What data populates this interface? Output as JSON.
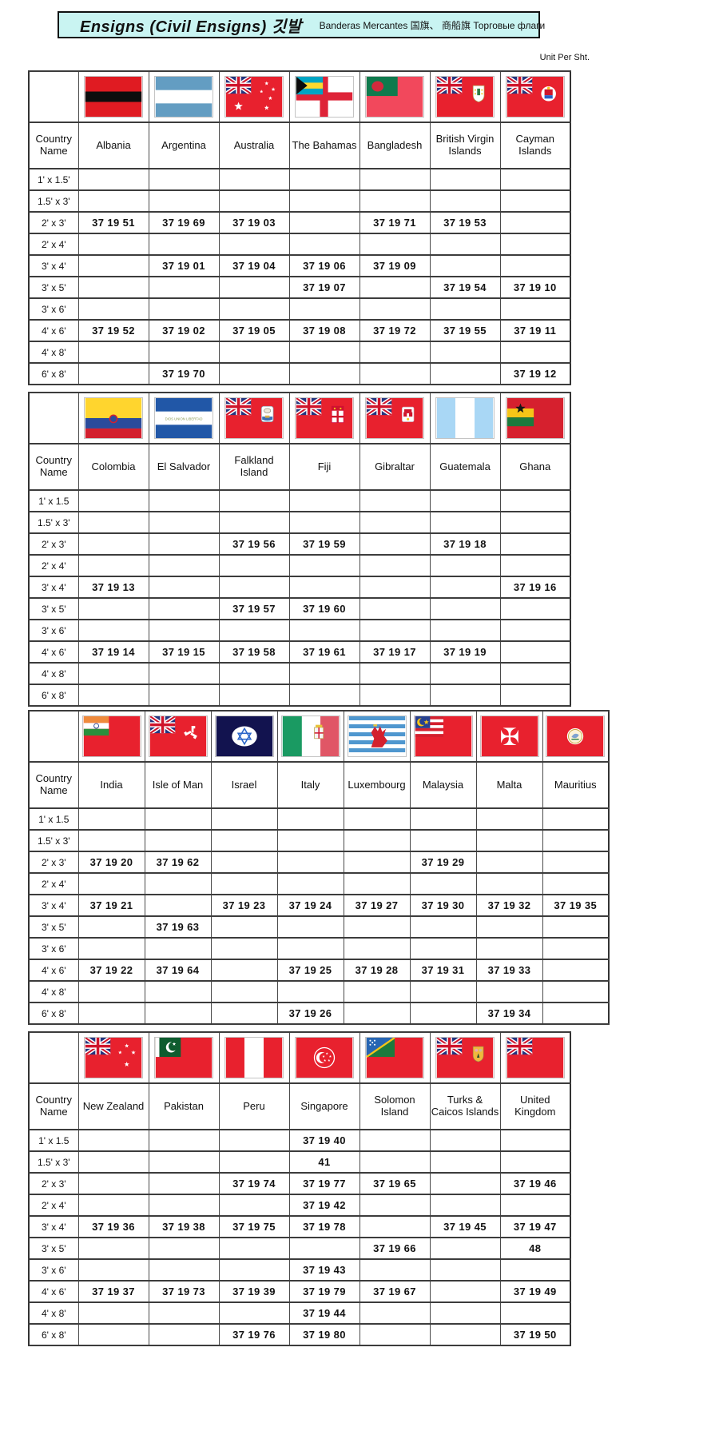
{
  "header": {
    "title": "Ensigns (Civil Ensigns) 깃발",
    "subtitle": "Banderas Mercantes  国旗、 商船旗  Торговые флаги",
    "unit_note": "Unit Per Sht.",
    "title_bg": "#c9f4f2"
  },
  "labels": {
    "country_name": "Country Name"
  },
  "tables": [
    {
      "columns": [
        {
          "country": "Albania",
          "flag": "albania"
        },
        {
          "country": "Argentina",
          "flag": "argentina"
        },
        {
          "country": "Australia",
          "flag": "australia"
        },
        {
          "country": "The Bahamas",
          "flag": "bahamas"
        },
        {
          "country": "Bangladesh",
          "flag": "bangladesh"
        },
        {
          "country": "British Virgin Islands",
          "flag": "british-virgin-islands"
        },
        {
          "country": "Cayman Islands",
          "flag": "cayman-islands"
        }
      ],
      "sizes": [
        "1' x 1.5'",
        "1.5' x 3'",
        "2' x 3'",
        "2' x 4'",
        "3' x 4'",
        "3' x 5'",
        "3' x 6'",
        "4' x 6'",
        "4' x 8'",
        "6' x 8'"
      ],
      "rows": [
        [
          "",
          "",
          "",
          "",
          "",
          "",
          ""
        ],
        [
          "",
          "",
          "",
          "",
          "",
          "",
          ""
        ],
        [
          "37 19 51",
          "37 19 69",
          "37 19 03",
          "",
          "37 19 71",
          "37 19 53",
          ""
        ],
        [
          "",
          "",
          "",
          "",
          "",
          "",
          ""
        ],
        [
          "",
          "37 19 01",
          "37 19 04",
          "37 19 06",
          "37 19 09",
          "",
          ""
        ],
        [
          "",
          "",
          "",
          "37 19 07",
          "",
          "37 19 54",
          "37 19 10"
        ],
        [
          "",
          "",
          "",
          "",
          "",
          "",
          ""
        ],
        [
          "37 19 52",
          "37 19 02",
          "37 19 05",
          "37 19 08",
          "37 19 72",
          "37 19 55",
          "37 19 11"
        ],
        [
          "",
          "",
          "",
          "",
          "",
          "",
          ""
        ],
        [
          "",
          "37 19 70",
          "",
          "",
          "",
          "",
          "37 19 12"
        ]
      ]
    },
    {
      "columns": [
        {
          "country": "Colombia",
          "flag": "colombia"
        },
        {
          "country": "El Salvador",
          "flag": "el-salvador"
        },
        {
          "country": "Falkland Island",
          "flag": "falkland-island"
        },
        {
          "country": "Fiji",
          "flag": "fiji"
        },
        {
          "country": "Gibraltar",
          "flag": "gibraltar"
        },
        {
          "country": "Guatemala",
          "flag": "guatemala"
        },
        {
          "country": "Ghana",
          "flag": "ghana"
        }
      ],
      "sizes": [
        "1' x 1.5",
        "1.5' x 3'",
        "2' x 3'",
        "2' x 4'",
        "3' x 4'",
        "3' x 5'",
        "3' x 6'",
        "4' x 6'",
        "4' x 8'",
        "6' x 8'"
      ],
      "rows": [
        [
          "",
          "",
          "",
          "",
          "",
          "",
          ""
        ],
        [
          "",
          "",
          "",
          "",
          "",
          "",
          ""
        ],
        [
          "",
          "",
          "37 19 56",
          "37 19 59",
          "",
          "37 19 18",
          ""
        ],
        [
          "",
          "",
          "",
          "",
          "",
          "",
          ""
        ],
        [
          "37 19 13",
          "",
          "",
          "",
          "",
          "",
          "37 19 16"
        ],
        [
          "",
          "",
          "37 19 57",
          "37 19 60",
          "",
          "",
          ""
        ],
        [
          "",
          "",
          "",
          "",
          "",
          "",
          ""
        ],
        [
          "37 19 14",
          "37 19 15",
          "37 19 58",
          "37 19 61",
          "37 19 17",
          "37 19 19",
          ""
        ],
        [
          "",
          "",
          "",
          "",
          "",
          "",
          ""
        ],
        [
          "",
          "",
          "",
          "",
          "",
          "",
          ""
        ]
      ]
    },
    {
      "columns": [
        {
          "country": "India",
          "flag": "india"
        },
        {
          "country": "Isle of Man",
          "flag": "isle-of-man"
        },
        {
          "country": "Israel",
          "flag": "israel"
        },
        {
          "country": "Italy",
          "flag": "italy"
        },
        {
          "country": "Luxembourg",
          "flag": "luxembourg"
        },
        {
          "country": "Malaysia",
          "flag": "malaysia"
        },
        {
          "country": "Malta",
          "flag": "malta"
        },
        {
          "country": "Mauritius",
          "flag": "mauritius"
        }
      ],
      "sizes": [
        "1' x 1.5",
        "1.5' x 3'",
        "2' x 3'",
        "2' x 4'",
        "3' x 4'",
        "3' x 5'",
        "3' x 6'",
        "4' x 6'",
        "4' x 8'",
        "6' x 8'"
      ],
      "rows": [
        [
          "",
          "",
          "",
          "",
          "",
          "",
          "",
          ""
        ],
        [
          "",
          "",
          "",
          "",
          "",
          "",
          "",
          ""
        ],
        [
          "37 19 20",
          "37 19 62",
          "",
          "",
          "",
          "37 19 29",
          "",
          ""
        ],
        [
          "",
          "",
          "",
          "",
          "",
          "",
          "",
          ""
        ],
        [
          "37 19 21",
          "",
          "37 19 23",
          "37 19 24",
          "37 19 27",
          "37 19 30",
          "37 19 32",
          "37 19 35"
        ],
        [
          "",
          "37 19 63",
          "",
          "",
          "",
          "",
          "",
          ""
        ],
        [
          "",
          "",
          "",
          "",
          "",
          "",
          "",
          ""
        ],
        [
          "37 19 22",
          "37 19 64",
          "",
          "37 19 25",
          "37 19 28",
          "37 19 31",
          "37 19 33",
          ""
        ],
        [
          "",
          "",
          "",
          "",
          "",
          "",
          "",
          ""
        ],
        [
          "",
          "",
          "",
          "37 19 26",
          "",
          "",
          "37 19 34",
          ""
        ]
      ]
    },
    {
      "columns": [
        {
          "country": "New Zealand",
          "flag": "new-zealand"
        },
        {
          "country": "Pakistan",
          "flag": "pakistan"
        },
        {
          "country": "Peru",
          "flag": "peru"
        },
        {
          "country": "Singapore",
          "flag": "singapore"
        },
        {
          "country": "Solomon Island",
          "flag": "solomon-island"
        },
        {
          "country": "Turks & Caicos Islands",
          "flag": "turks-caicos"
        },
        {
          "country": "United Kingdom",
          "flag": "united-kingdom"
        }
      ],
      "sizes": [
        "1' x 1.5",
        "1.5' x 3'",
        "2' x 3'",
        "2' x 4'",
        "3' x 4'",
        "3' x 5'",
        "3' x 6'",
        "4' x 6'",
        "4' x 8'",
        "6' x 8'"
      ],
      "rows": [
        [
          "",
          "",
          "",
          "37 19 40",
          "",
          "",
          ""
        ],
        [
          "",
          "",
          "",
          "41",
          "",
          "",
          ""
        ],
        [
          "",
          "",
          "37 19 74",
          "37 19 77",
          "37 19 65",
          "",
          "37 19 46"
        ],
        [
          "",
          "",
          "",
          "37 19 42",
          "",
          "",
          ""
        ],
        [
          "37 19 36",
          "37 19 38",
          "37 19 75",
          "37 19 78",
          "",
          "37 19 45",
          "37 19 47"
        ],
        [
          "",
          "",
          "",
          "",
          "37 19 66",
          "",
          "48"
        ],
        [
          "",
          "",
          "",
          "37 19 43",
          "",
          "",
          ""
        ],
        [
          "37 19 37",
          "37 19 73",
          "37 19 39",
          "37 19 79",
          "37 19 67",
          "",
          "37 19 49"
        ],
        [
          "",
          "",
          "",
          "37 19 44",
          "",
          "",
          ""
        ],
        [
          "",
          "",
          "37 19 76",
          "37 19 80",
          "",
          "",
          "37 19 50"
        ]
      ]
    }
  ]
}
